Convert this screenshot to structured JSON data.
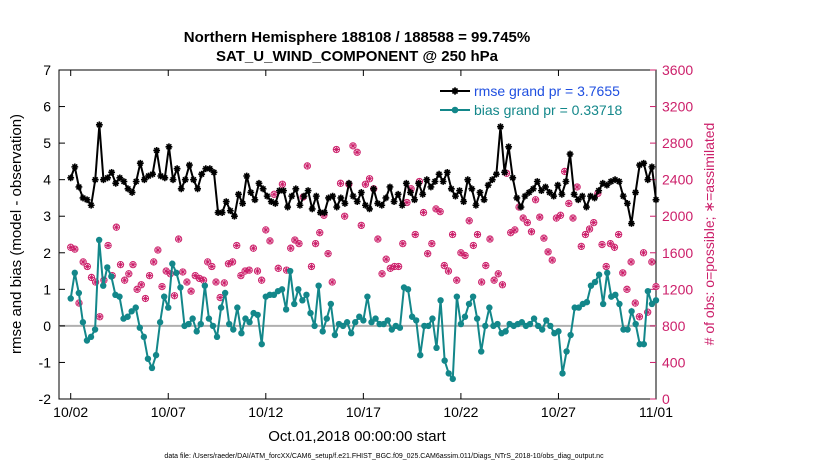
{
  "chart_data": {
    "type": "line",
    "title": "Northern Hemisphere 188108 / 188588 = 99.745%",
    "subtitle": "SAT_U_WIND_COMPONENT @ 250 hPa",
    "xlabel": "Oct.01,2018 00:00:00 start",
    "ylabel_left": "rmse and bias (model - observation)",
    "ylabel_right": "# of obs: o=possible; ∗=assimilated",
    "x_tick_labels": [
      "10/02",
      "10/07",
      "10/12",
      "10/17",
      "10/22",
      "10/27",
      "11/01"
    ],
    "x_tick_days": [
      1,
      6,
      11,
      16,
      21,
      26,
      31
    ],
    "xlim_days": [
      0.4,
      31
    ],
    "ylim_left": [
      -2,
      7
    ],
    "y_ticks_left": [
      "-2",
      "-1",
      "0",
      "1",
      "2",
      "3",
      "4",
      "5",
      "6",
      "7"
    ],
    "ylim_right": [
      0,
      3600
    ],
    "y_ticks_right": [
      "0",
      "400",
      "800",
      "1200",
      "1600",
      "2000",
      "2400",
      "2800",
      "3200",
      "3600"
    ],
    "zero_line": 0,
    "grid": false,
    "legend_position": "top-right",
    "footnote": "data file: /Users/raeder/DAI/ATM_forcXX/CAM6_setup/f.e21.FHIST_BGC.f09_025.CAM6assim.011/Diags_NTrS_2018-10/obs_diag_output.nc",
    "series": [
      {
        "name": "rmse grand pr = 3.7655",
        "color": "#000000",
        "marker": "star",
        "axis": "left",
        "values": [
          4.05,
          4.35,
          3.8,
          3.5,
          3.45,
          3.3,
          4.0,
          5.5,
          4.0,
          4.05,
          4.2,
          3.9,
          4.05,
          3.95,
          3.75,
          3.65,
          3.95,
          4.45,
          4.0,
          4.1,
          4.15,
          4.8,
          4.1,
          4.05,
          4.9,
          4.0,
          4.3,
          3.75,
          4.0,
          4.4,
          4.0,
          3.75,
          4.15,
          4.3,
          4.3,
          4.2,
          3.1,
          3.1,
          3.4,
          3.15,
          3.0,
          3.6,
          3.35,
          4.1,
          3.65,
          3.45,
          3.9,
          3.75,
          3.55,
          3.4,
          3.35,
          3.7,
          3.7,
          3.25,
          3.55,
          3.75,
          3.3,
          3.55,
          3.7,
          3.2,
          3.55,
          3.1,
          3.1,
          3.5,
          3.55,
          3.25,
          3.5,
          3.35,
          3.9,
          3.55,
          3.4,
          3.65,
          3.3,
          3.2,
          3.75,
          3.35,
          3.3,
          3.5,
          3.8,
          3.4,
          3.6,
          3.3,
          3.9,
          3.65,
          3.45,
          3.9,
          3.6,
          4.0,
          3.8,
          3.95,
          4.15,
          3.95,
          4.2,
          3.75,
          3.55,
          3.7,
          3.4,
          4.0,
          3.75,
          3.3,
          3.65,
          3.45,
          3.85,
          4.0,
          4.15,
          5.45,
          4.2,
          4.9,
          4.05,
          3.5,
          3.25,
          3.55,
          3.65,
          3.75,
          3.95,
          3.7,
          3.8,
          3.65,
          3.55,
          3.85,
          3.6,
          3.95,
          4.7,
          3.6,
          3.45,
          3.55,
          3.25,
          3.55,
          3.5,
          3.7,
          3.9,
          3.85,
          3.95,
          4.0,
          3.95,
          3.55,
          3.35,
          2.8,
          3.65,
          4.4,
          4.45,
          4.0,
          4.35,
          3.45
        ]
      },
      {
        "name": "bias grand pr = 0.33718",
        "color": "#13878a",
        "marker": "circle",
        "axis": "left",
        "values": [
          0.75,
          1.45,
          0.9,
          0.1,
          -0.4,
          -0.3,
          -0.1,
          2.35,
          1.1,
          1.6,
          1.35,
          0.85,
          0.8,
          0.2,
          0.25,
          0.4,
          0.5,
          -0.05,
          -0.3,
          -0.9,
          -1.15,
          -0.8,
          0.1,
          0.8,
          0.5,
          1.7,
          1.45,
          1.05,
          0.0,
          0.05,
          0.2,
          -0.15,
          0.05,
          1.1,
          0.2,
          0.0,
          -0.3,
          0.5,
          0.9,
          0.05,
          -0.1,
          0.5,
          -0.2,
          0.2,
          0.1,
          0.35,
          0.3,
          -0.5,
          0.8,
          0.85,
          0.85,
          0.95,
          1.0,
          0.45,
          1.5,
          0.6,
          1.0,
          0.7,
          0.85,
          0.35,
          0.0,
          1.1,
          -0.15,
          0.2,
          0.6,
          -0.25,
          0.05,
          0.0,
          0.1,
          -0.2,
          0.1,
          0.25,
          0.15,
          0.8,
          0.1,
          0.2,
          0.05,
          0.05,
          0.15,
          -0.1,
          0.0,
          -0.05,
          1.05,
          1.0,
          0.25,
          0.15,
          -0.8,
          0.0,
          0.0,
          0.2,
          -0.6,
          0.7,
          -0.95,
          -1.3,
          -1.45,
          0.8,
          0.05,
          0.25,
          0.6,
          0.8,
          0.2,
          -0.7,
          0.0,
          0.5,
          0.0,
          0.05,
          -0.2,
          -0.15,
          0.05,
          0.0,
          0.05,
          0.1,
          0.0,
          0.05,
          0.2,
          0.0,
          -0.1,
          0.15,
          0.0,
          -0.2,
          -0.15,
          -1.3,
          -0.7,
          -0.25,
          0.5,
          0.5,
          0.6,
          0.65,
          1.1,
          1.2,
          1.4,
          0.6,
          1.45,
          0.8,
          0.85,
          0.6,
          -0.1,
          -0.1,
          0.4,
          0.05,
          -0.5,
          -0.5,
          0.95,
          0.6,
          0.7
        ]
      },
      {
        "name": "# of obs",
        "color": "#cc1f6a",
        "marker": "asterisk",
        "axis": "right",
        "values": [
          1660,
          1640,
          1050,
          1500,
          1450,
          1330,
          1280,
          900,
          1300,
          1680,
          1350,
          1880,
          1470,
          1300,
          1370,
          1470,
          1200,
          1250,
          1100,
          1350,
          1500,
          1630,
          1230,
          1400,
          1370,
          1130,
          1750,
          1390,
          1280,
          1180,
          1350,
          1320,
          1300,
          1500,
          1450,
          1280,
          1110,
          1270,
          1480,
          1500,
          1680,
          1350,
          1400,
          1410,
          1650,
          1400,
          1300,
          1850,
          1730,
          2240,
          1430,
          2350,
          1410,
          1650,
          1740,
          1700,
          2210,
          2550,
          1450,
          1700,
          1820,
          2010,
          1590,
          1280,
          2730,
          2360,
          2000,
          2350,
          2770,
          2700,
          1900,
          2350,
          2410,
          2300,
          1750,
          1370,
          1530,
          1430,
          1450,
          1450,
          1700,
          2150,
          2300,
          1800,
          2380,
          2040,
          1590,
          1700,
          2080,
          2050,
          1460,
          1400,
          1800,
          1300,
          1600,
          1570,
          1950,
          1680,
          1800,
          1280,
          1460,
          1750,
          1300,
          1370,
          1250,
          2470,
          1820,
          1850,
          2100,
          1980,
          1930,
          1830,
          2180,
          1990,
          1760,
          1610,
          1520,
          1980,
          2010,
          2490,
          2140,
          1980,
          2320,
          1670,
          1800,
          1860,
          1930,
          2250,
          1690,
          1450,
          1700,
          1660,
          1800,
          1380,
          1200,
          1500,
          1050,
          900,
          1600,
          950,
          1500,
          1230
        ]
      }
    ]
  }
}
